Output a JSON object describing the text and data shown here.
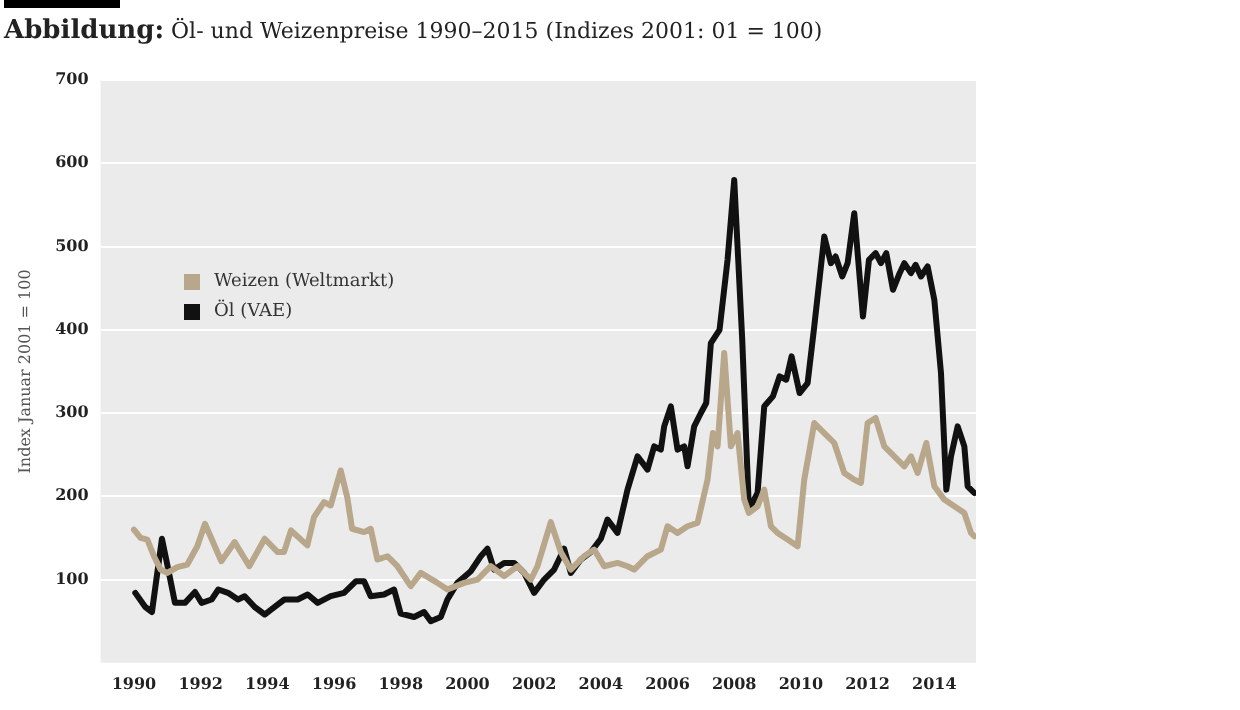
{
  "chart_data": {
    "type": "line",
    "title": "Abbildung: Öl- und Weizenpreise 1990–2015 (Indizes 2001: 01 = 100)",
    "ylabel": "Index Januar 2001 = 100",
    "xlim": [
      1989,
      2015.25
    ],
    "xticks": [
      1990,
      1992,
      1994,
      1996,
      1998,
      2000,
      2002,
      2004,
      2006,
      2008,
      2010,
      2012,
      2014
    ],
    "ylim": [
      0,
      700
    ],
    "yticks": [
      100,
      200,
      300,
      400,
      500,
      600,
      700
    ],
    "grid": "y",
    "legend": "top left",
    "marker": "none",
    "line_style": "solid",
    "series": [
      {
        "name": "Weizen (Weltmarkt)",
        "color": "#b9a78b",
        "x": [
          1990.0,
          1990.2,
          1990.4,
          1990.6,
          1990.8,
          1991.0,
          1991.3,
          1991.6,
          1991.9,
          1992.13,
          1992.62,
          1993.02,
          1993.46,
          1993.92,
          1994.31,
          1994.5,
          1994.71,
          1995.2,
          1995.4,
          1995.7,
          1995.9,
          1996.2,
          1996.4,
          1996.54,
          1996.9,
          1997.1,
          1997.3,
          1997.6,
          1997.9,
          1998.3,
          1998.6,
          1999.1,
          1999.4,
          1999.9,
          2000.3,
          2000.7,
          2001.1,
          2001.5,
          2001.9,
          2002.1,
          2002.5,
          2002.8,
          2003.1,
          2003.5,
          2003.8,
          2004.1,
          2004.5,
          2004.8,
          2005.0,
          2005.4,
          2005.8,
          2006.0,
          2006.3,
          2006.6,
          2006.9,
          2007.2,
          2007.36,
          2007.5,
          2007.7,
          2007.9,
          2008.1,
          2008.3,
          2008.44,
          2008.7,
          2008.9,
          2009.1,
          2009.3,
          2009.6,
          2009.9,
          2010.1,
          2010.4,
          2010.7,
          2011.0,
          2011.3,
          2011.6,
          2011.8,
          2012.0,
          2012.24,
          2012.5,
          2012.8,
          2013.1,
          2013.3,
          2013.5,
          2013.76,
          2014.0,
          2014.3,
          2014.6,
          2014.9,
          2015.1,
          2015.2
        ],
        "values": [
          160,
          150,
          148,
          128,
          112,
          108,
          115,
          118,
          140,
          167,
          122,
          145,
          116,
          149,
          133,
          133,
          159,
          141,
          175,
          193,
          189,
          231,
          198,
          161,
          157,
          161,
          124,
          128,
          116,
          92,
          108,
          96,
          88,
          96,
          100,
          116,
          104,
          116,
          100,
          116,
          169,
          133,
          112,
          128,
          136,
          116,
          120,
          116,
          112,
          128,
          136,
          164,
          156,
          164,
          168,
          220,
          276,
          260,
          372,
          260,
          276,
          196,
          180,
          188,
          208,
          164,
          156,
          148,
          140,
          220,
          288,
          276,
          264,
          228,
          220,
          216,
          288,
          294,
          260,
          248,
          236,
          248,
          228,
          264,
          212,
          196,
          188,
          180,
          156,
          152
        ]
      },
      {
        "name": "Öl (VAE)",
        "color": "#111111",
        "x": [
          1990.04,
          1990.34,
          1990.54,
          1990.84,
          1991.03,
          1991.23,
          1991.53,
          1991.83,
          1992.03,
          1992.33,
          1992.53,
          1992.82,
          1993.12,
          1993.32,
          1993.62,
          1993.92,
          1994.21,
          1994.51,
          1994.91,
          1995.21,
          1995.51,
          1995.9,
          1996.3,
          1996.66,
          1996.9,
          1997.1,
          1997.5,
          1997.8,
          1998.0,
          1998.4,
          1998.7,
          1998.9,
          1999.2,
          1999.4,
          1999.7,
          2000.1,
          2000.4,
          2000.6,
          2000.8,
          2001.1,
          2001.4,
          2001.7,
          2002.0,
          2002.3,
          2002.6,
          2002.9,
          2003.1,
          2003.4,
          2003.7,
          2004.0,
          2004.2,
          2004.5,
          2004.8,
          2005.1,
          2005.4,
          2005.6,
          2005.8,
          2005.9,
          2006.1,
          2006.3,
          2006.5,
          2006.6,
          2006.8,
          2007.0,
          2007.16,
          2007.3,
          2007.56,
          2007.8,
          2008.0,
          2008.24,
          2008.44,
          2008.7,
          2008.9,
          2009.16,
          2009.36,
          2009.56,
          2009.72,
          2009.96,
          2010.2,
          2010.4,
          2010.7,
          2010.9,
          2011.04,
          2011.24,
          2011.4,
          2011.6,
          2011.86,
          2012.04,
          2012.24,
          2012.4,
          2012.56,
          2012.76,
          2012.96,
          2013.1,
          2013.3,
          2013.44,
          2013.6,
          2013.8,
          2014.0,
          2014.2,
          2014.36,
          2014.5,
          2014.7,
          2014.9,
          2015.0,
          2015.2
        ],
        "values": [
          84,
          67,
          61,
          149,
          112,
          72,
          72,
          85,
          72,
          76,
          88,
          84,
          76,
          80,
          67,
          58,
          67,
          76,
          76,
          82,
          72,
          80,
          84,
          98,
          98,
          80,
          82,
          88,
          59,
          55,
          61,
          50,
          55,
          76,
          96,
          110,
          128,
          137,
          112,
          120,
          120,
          108,
          84,
          100,
          112,
          137,
          108,
          124,
          133,
          149,
          172,
          156,
          208,
          248,
          232,
          260,
          256,
          284,
          308,
          256,
          260,
          236,
          284,
          300,
          312,
          384,
          400,
          484,
          580,
          388,
          184,
          204,
          308,
          320,
          344,
          340,
          368,
          324,
          336,
          404,
          512,
          480,
          488,
          464,
          480,
          540,
          416,
          484,
          492,
          480,
          492,
          448,
          468,
          480,
          468,
          478,
          464,
          476,
          436,
          348,
          208,
          248,
          284,
          260,
          212,
          204
        ]
      }
    ]
  }
}
